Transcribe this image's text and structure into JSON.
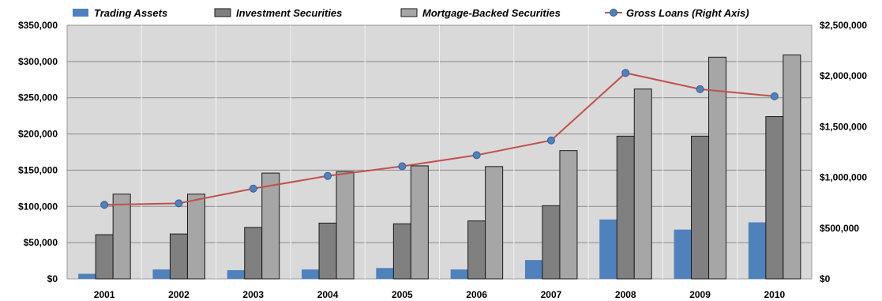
{
  "chart_data": {
    "type": "bar",
    "title": "",
    "xlabel": "",
    "ylabel": "",
    "categories": [
      "2001",
      "2002",
      "2003",
      "2004",
      "2005",
      "2006",
      "2007",
      "2008",
      "2009",
      "2010"
    ],
    "ylim": [
      0,
      350000
    ],
    "y_ticks": [
      "$0",
      "$50,000",
      "$100,000",
      "$150,000",
      "$200,000",
      "$250,000",
      "$300,000",
      "$350,000"
    ],
    "y2lim": [
      0,
      2500000
    ],
    "y2_ticks": [
      "$0",
      "$500,000",
      "$1,000,000",
      "$1,500,000",
      "$2,000,000",
      "$2,500,000"
    ],
    "grid": true,
    "legend_position": "top",
    "series": [
      {
        "name": "Trading Assets",
        "kind": "bar",
        "axis": "left",
        "color": "#4f81bd",
        "values": [
          7000,
          13000,
          12000,
          13000,
          15000,
          13000,
          26000,
          82000,
          68000,
          78000
        ]
      },
      {
        "name": "Investment Securities",
        "kind": "bar",
        "axis": "left",
        "color": "#808080",
        "values": [
          61000,
          62000,
          71000,
          77000,
          76000,
          80000,
          101000,
          197000,
          197000,
          224000
        ]
      },
      {
        "name": "Mortgage-Backed Securities",
        "kind": "bar",
        "axis": "left",
        "color": "#a6a6a6",
        "values": [
          117000,
          117000,
          146000,
          148000,
          156000,
          155000,
          177000,
          262000,
          306000,
          309000
        ]
      },
      {
        "name": "Gross Loans (Right Axis)",
        "kind": "line",
        "axis": "right",
        "color": "#c0504d",
        "marker_color": "#4f81bd",
        "values": [
          730000,
          745000,
          890000,
          1015000,
          1110000,
          1220000,
          1365000,
          2030000,
          1870000,
          1800000
        ]
      }
    ]
  }
}
